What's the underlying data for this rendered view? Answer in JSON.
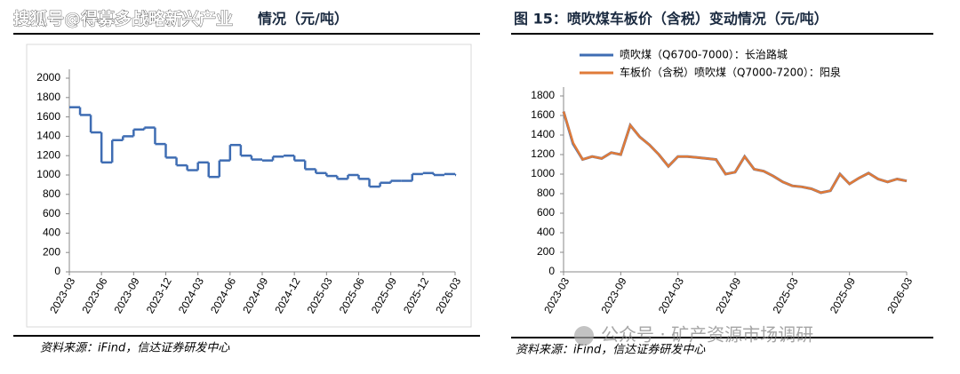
{
  "chart_data": [
    {
      "type": "line",
      "step": true,
      "title": "情况（元/吨）",
      "source": "资料来源：iFind，信达证券研发中心",
      "categories": [
        "2023-03",
        null,
        null,
        "2023-06",
        null,
        null,
        "2023-09",
        null,
        null,
        "2023-12",
        null,
        null,
        "2024-03",
        null,
        null,
        "2024-06",
        null,
        null,
        "2024-09",
        null,
        null,
        "2024-12",
        null,
        null,
        "2025-03",
        null,
        null,
        "2025-06",
        null,
        null,
        "2025-09",
        null,
        null,
        "2025-12",
        null,
        null,
        "2026-03"
      ],
      "values": [
        1700,
        1620,
        1440,
        1130,
        1360,
        1400,
        1470,
        1490,
        1320,
        1180,
        1100,
        1050,
        1130,
        980,
        1150,
        1310,
        1200,
        1160,
        1150,
        1190,
        1200,
        1150,
        1060,
        1020,
        990,
        960,
        1000,
        960,
        880,
        920,
        940,
        940,
        1010,
        1020,
        1000,
        1010,
        1000
      ],
      "color": "#3f6db3",
      "ylim": [
        0,
        2000
      ],
      "yticks": [
        0,
        200,
        400,
        600,
        800,
        1000,
        1200,
        1400,
        1600,
        1800,
        2000
      ]
    },
    {
      "type": "line",
      "step": false,
      "title": "图 15：喷吹煤车板价（含税）变动情况（元/吨）",
      "source": "资料来源：iFind，信达证券研发中心",
      "categories": [
        "2023-03",
        null,
        null,
        null,
        null,
        null,
        "2023-09",
        null,
        null,
        null,
        null,
        null,
        "2024-03",
        null,
        null,
        null,
        null,
        null,
        "2024-09",
        null,
        null,
        null,
        null,
        null,
        "2025-03",
        null,
        null,
        null,
        null,
        null,
        "2025-09",
        null,
        null,
        null,
        null,
        null,
        "2026-03"
      ],
      "series": [
        {
          "name": "喷吹煤（Q6700-7000）：长治路城",
          "color": "#3f6db3",
          "values": [
            1640,
            1310,
            1150,
            1180,
            1160,
            1220,
            1200,
            1500,
            1380,
            1300,
            1200,
            1080,
            1180,
            1180,
            1170,
            1160,
            1150,
            1000,
            1020,
            1180,
            1050,
            1030,
            980,
            920,
            880,
            870,
            850,
            810,
            830,
            1000,
            900,
            960,
            1010,
            950,
            920,
            950,
            930
          ]
        },
        {
          "name": "车板价（含税）喷吹煤（Q7000-7200）：阳泉",
          "color": "#e07b39",
          "values": [
            1640,
            1320,
            1150,
            1180,
            1160,
            1220,
            1200,
            1500,
            1380,
            1300,
            1200,
            1080,
            1180,
            1180,
            1170,
            1160,
            1150,
            1000,
            1020,
            1180,
            1050,
            1030,
            980,
            920,
            880,
            870,
            850,
            810,
            830,
            1000,
            900,
            960,
            1010,
            950,
            920,
            950,
            930
          ]
        }
      ],
      "ylim": [
        0,
        1800
      ],
      "yticks": [
        0,
        200,
        400,
        600,
        800,
        1000,
        1200,
        1400,
        1600,
        1800
      ]
    }
  ],
  "watermarks": [
    "搜狐号@得募多战略新兴产业",
    "公众号 · 矿产资源市场调研"
  ]
}
